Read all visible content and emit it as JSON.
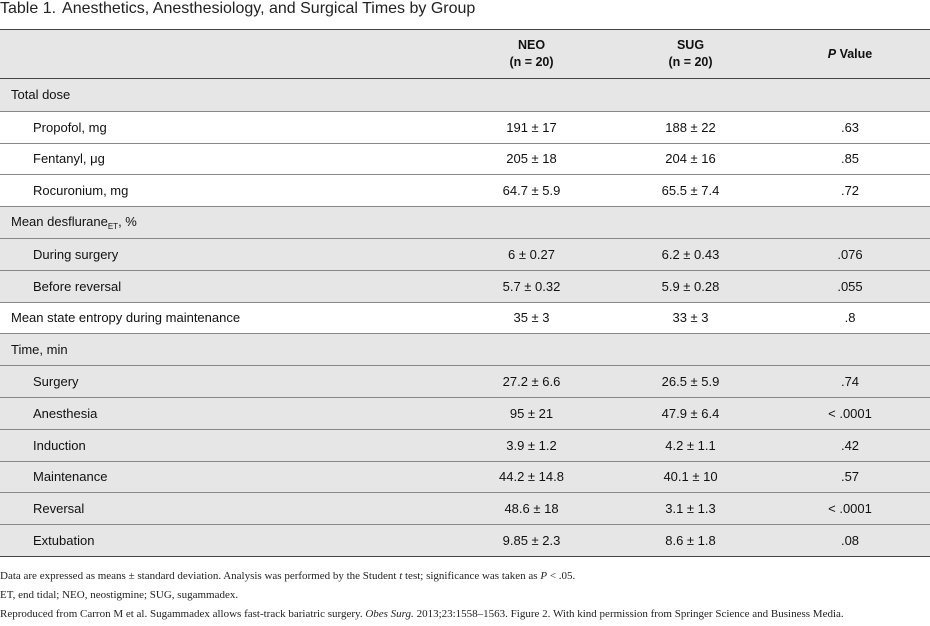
{
  "caption": {
    "label": "Table 1.",
    "title": "Anesthetics, Anesthesiology, and Surgical Times by Group"
  },
  "table": {
    "header": [
      [
        "NEO",
        "(n = 20)"
      ],
      [
        "SUG",
        "(n = 20)"
      ],
      [
        "P",
        " Value"
      ]
    ],
    "rows": [
      [
        "Total dose"
      ],
      [
        "Propofol, mg",
        "191 ± 17",
        "188 ± 22",
        ".63"
      ],
      [
        "Fentanyl, μg",
        "205 ± 18",
        "204 ± 16",
        ".85"
      ],
      [
        "Rocuronium, mg",
        "64.7 ± 5.9",
        "65.5 ± 7.4",
        ".72"
      ],
      [
        [
          "Mean desflurane",
          "ET",
          ", %"
        ]
      ],
      [
        "During surgery",
        "6 ± 0.27",
        "6.2 ± 0.43",
        ".076"
      ],
      [
        "Before reversal",
        "5.7 ± 0.32",
        "5.9 ± 0.28",
        ".055"
      ],
      [
        "Mean state entropy during maintenance",
        "35 ± 3",
        "33 ± 3",
        ".8"
      ],
      [
        "Time, min"
      ],
      [
        "Surgery",
        "27.2 ± 6.6",
        "26.5 ± 5.9",
        ".74"
      ],
      [
        "Anesthesia",
        "95 ± 21",
        "47.9 ± 6.4",
        "< .0001"
      ],
      [
        "Induction",
        "3.9 ± 1.2",
        "4.2 ± 1.1",
        ".42"
      ],
      [
        "Maintenance",
        "44.2 ± 14.8",
        "40.1 ± 10",
        ".57"
      ],
      [
        "Reversal",
        "48.6 ± 18",
        "3.1 ± 1.3",
        "< .0001"
      ],
      [
        "Extubation",
        "9.85 ± 2.3",
        "8.6 ± 1.8",
        ".08"
      ]
    ]
  },
  "footnotes": [
    [
      "Data are expressed as means ± standard deviation. Analysis was performed by the Student ",
      "t",
      " test; significance was taken as ",
      "P",
      " < .05."
    ],
    [
      "ET, end tidal; NEO, neostigmine; SUG, sugammadex."
    ],
    [
      "Reproduced from Carron M et al. Sugammadex allows fast-track bariatric surgery. ",
      "Obes Surg.",
      " 2013;23:1558–1563. Figure 2. With kind permission from Springer Science and Business Media."
    ]
  ]
}
